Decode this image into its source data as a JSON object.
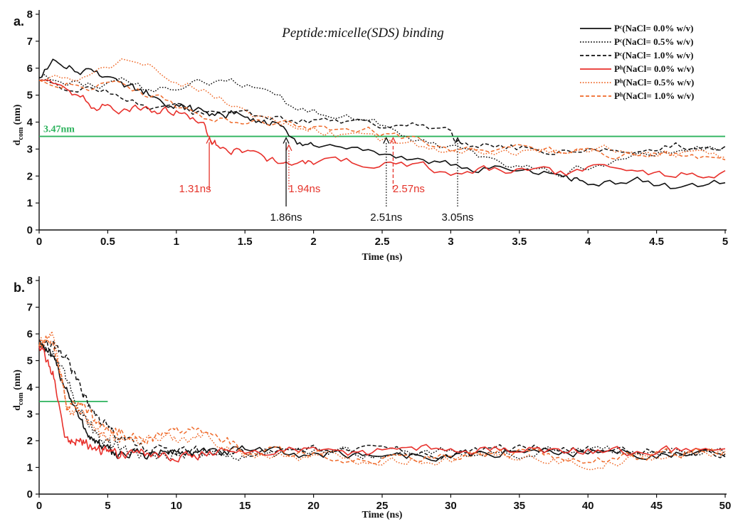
{
  "colors": {
    "pc": "#111111",
    "ph_red": "#e8312c",
    "ph_orange": "#ef6a2a",
    "threshold": "#2db35d",
    "anno_black": "#111111",
    "anno_red": "#e5332a"
  },
  "chart_data": [
    {
      "type": "line",
      "panel_label": "a.",
      "title": "Peptide:micelle(SDS) binding",
      "xlabel": "Time (ns)",
      "ylabel": "d",
      "ylabel_sub": "com",
      "ylabel_unit": "(nm)",
      "xlim": [
        0,
        5
      ],
      "ylim": [
        0,
        8
      ],
      "xticks": [
        0,
        0.5,
        1,
        1.5,
        2,
        2.5,
        3,
        3.5,
        4,
        4.5,
        5
      ],
      "xtick_labels": [
        "0",
        "0.5",
        "1",
        "1.5",
        "2",
        "2.5",
        "3",
        "3.5",
        "4",
        "4.5",
        "5"
      ],
      "yticks": [
        0,
        1,
        2,
        3,
        4,
        5,
        6,
        7,
        8
      ],
      "ytick_labels": [
        "0",
        "1",
        "2",
        "3",
        "4",
        "5",
        "6",
        "7",
        "8"
      ],
      "grid": false,
      "legend_position": "top-right",
      "threshold": {
        "y": 3.47,
        "label": "3.47nm"
      },
      "annotations": [
        {
          "x": 1.24,
          "label": "1.31ns",
          "color": "red",
          "style": "solid",
          "y_point": 3.47
        },
        {
          "x": 1.82,
          "label": "1.94ns",
          "color": "red",
          "style": "dotted",
          "y_point": 3.2
        },
        {
          "x": 2.58,
          "label": "2.57ns",
          "color": "red",
          "style": "dashed",
          "y_point": 3.47
        },
        {
          "x": 1.8,
          "label": "1.86ns",
          "color": "black",
          "style": "solid",
          "y_point": 3.47
        },
        {
          "x": 2.53,
          "label": "2.51ns",
          "color": "black",
          "style": "dotted",
          "y_point": 3.47
        },
        {
          "x": 3.05,
          "label": "3.05ns",
          "color": "black",
          "style": "dotted",
          "y_point": 3.47
        }
      ],
      "series": [
        {
          "name": "Pᶜ(NaCl= 0.0% w/v)",
          "color": "pc",
          "style": "solid",
          "x": [
            0,
            0.1,
            0.2,
            0.3,
            0.4,
            0.5,
            0.6,
            0.7,
            0.8,
            0.9,
            1.0,
            1.1,
            1.2,
            1.3,
            1.4,
            1.5,
            1.6,
            1.7,
            1.8,
            1.9,
            2.0,
            2.2,
            2.4,
            2.6,
            2.8,
            3.0,
            3.2,
            3.4,
            3.6,
            3.8,
            3.9,
            4.0,
            4.2,
            4.4,
            4.6,
            4.8,
            5.0
          ],
          "y": [
            5.7,
            6.2,
            6.1,
            5.9,
            5.9,
            5.7,
            5.3,
            5.2,
            5.1,
            4.9,
            4.6,
            4.5,
            4.3,
            4.3,
            4.3,
            4.2,
            4.1,
            4.0,
            3.6,
            3.2,
            3.1,
            2.9,
            2.8,
            2.7,
            2.6,
            2.5,
            2.3,
            2.2,
            2.1,
            2.0,
            1.8,
            1.8,
            1.7,
            1.8,
            1.6,
            1.6,
            1.75
          ]
        },
        {
          "name": "Pᶜ(NaCl= 0.5% w/v)",
          "color": "pc",
          "style": "dotted",
          "x": [
            0,
            0.2,
            0.4,
            0.6,
            0.8,
            1.0,
            1.2,
            1.4,
            1.6,
            1.8,
            2.0,
            2.2,
            2.4,
            2.6,
            2.8,
            3.0,
            3.2,
            3.4,
            3.6,
            3.8,
            4.0,
            4.2,
            4.4,
            4.6,
            4.8,
            5.0
          ],
          "y": [
            5.7,
            5.5,
            5.3,
            5.6,
            5.2,
            5.3,
            5.5,
            5.6,
            5.2,
            4.7,
            4.4,
            4.2,
            4.0,
            3.8,
            3.3,
            3.0,
            2.7,
            2.5,
            2.3,
            2.1,
            2.4,
            2.5,
            2.7,
            2.9,
            3.0,
            3.1
          ]
        },
        {
          "name": "Pᶜ(NaCl= 1.0% w/v)",
          "color": "pc",
          "style": "dashed",
          "x": [
            0,
            0.2,
            0.4,
            0.6,
            0.8,
            1.0,
            1.2,
            1.4,
            1.6,
            1.8,
            2.0,
            2.2,
            2.4,
            2.6,
            2.8,
            3.0,
            3.05,
            3.2,
            3.4,
            3.6,
            3.8,
            4.0,
            4.2,
            4.4,
            4.6,
            4.8,
            5.0
          ],
          "y": [
            5.6,
            5.3,
            5.2,
            5.0,
            4.6,
            4.5,
            4.3,
            4.4,
            4.3,
            4.1,
            4.0,
            3.9,
            3.9,
            3.9,
            3.8,
            3.6,
            3.3,
            3.2,
            3.1,
            3.0,
            3.0,
            2.9,
            3.0,
            3.1,
            3.2,
            3.1,
            3.1
          ]
        },
        {
          "name": "Pʰ(NaCl= 0.0% w/v)",
          "color": "ph_red",
          "style": "solid",
          "x": [
            0,
            0.1,
            0.2,
            0.3,
            0.4,
            0.5,
            0.6,
            0.7,
            0.8,
            0.9,
            1.0,
            1.1,
            1.2,
            1.25,
            1.3,
            1.4,
            1.5,
            1.6,
            1.7,
            1.8,
            1.9,
            2.0,
            2.2,
            2.4,
            2.6,
            2.8,
            3.0,
            3.2,
            3.4,
            3.6,
            3.8,
            4.0,
            4.2,
            4.4,
            4.6,
            4.8,
            5.0
          ],
          "y": [
            5.6,
            5.4,
            5.2,
            4.9,
            4.6,
            4.6,
            4.5,
            4.5,
            4.6,
            4.4,
            4.4,
            4.2,
            3.9,
            3.47,
            3.1,
            3.0,
            3.0,
            2.9,
            2.6,
            2.4,
            2.6,
            2.6,
            2.6,
            2.5,
            2.4,
            2.3,
            2.2,
            2.2,
            2.2,
            2.1,
            2.1,
            2.2,
            2.2,
            2.2,
            2.1,
            2.1,
            2.2
          ]
        },
        {
          "name": "Pʰ(NaCl= 0.5% w/v)",
          "color": "ph_orange",
          "style": "dotted",
          "x": [
            0,
            0.2,
            0.4,
            0.6,
            0.8,
            1.0,
            1.2,
            1.4,
            1.6,
            1.8,
            2.0,
            2.2,
            2.4,
            2.6,
            2.8,
            3.0,
            3.2,
            3.4,
            3.6,
            3.8,
            4.0,
            4.2,
            4.4,
            4.6,
            4.8,
            5.0
          ],
          "y": [
            5.6,
            5.6,
            5.9,
            6.2,
            6.0,
            5.6,
            5.2,
            4.6,
            4.2,
            3.9,
            3.8,
            3.5,
            3.4,
            3.2,
            3.1,
            3.0,
            3.0,
            3.0,
            2.9,
            2.9,
            3.0,
            3.0,
            2.8,
            2.9,
            2.8,
            2.7
          ]
        },
        {
          "name": "Pʰ(NaCl= 1.0% w/v)",
          "color": "ph_orange",
          "style": "dashed",
          "x": [
            0,
            0.2,
            0.4,
            0.6,
            0.8,
            1.0,
            1.2,
            1.4,
            1.6,
            1.8,
            2.0,
            2.2,
            2.4,
            2.6,
            2.8,
            3.0,
            3.2,
            3.4,
            3.6,
            3.8,
            4.0,
            4.2,
            4.4,
            4.6,
            4.8,
            5.0
          ],
          "y": [
            5.6,
            5.5,
            5.3,
            5.4,
            5.0,
            4.6,
            4.3,
            4.1,
            4.1,
            3.9,
            3.8,
            3.7,
            3.7,
            3.5,
            3.2,
            3.0,
            2.9,
            3.0,
            3.0,
            2.9,
            2.9,
            2.8,
            2.7,
            2.8,
            2.7,
            2.6
          ]
        }
      ]
    },
    {
      "type": "line",
      "panel_label": "b.",
      "xlabel": "Time (ns)",
      "ylabel": "d",
      "ylabel_sub": "com",
      "ylabel_unit": "(nm)",
      "xlim": [
        0,
        50
      ],
      "ylim": [
        0,
        8
      ],
      "xticks": [
        0,
        5,
        10,
        15,
        20,
        25,
        30,
        35,
        40,
        45,
        50
      ],
      "xtick_labels": [
        "0",
        "5",
        "10",
        "15",
        "20",
        "25",
        "30",
        "35",
        "40",
        "45",
        "50"
      ],
      "yticks": [
        0,
        1,
        2,
        3,
        4,
        5,
        6,
        7,
        8
      ],
      "ytick_labels": [
        "0",
        "1",
        "2",
        "3",
        "4",
        "5",
        "6",
        "7",
        "8"
      ],
      "grid": false,
      "threshold": {
        "y": 3.47,
        "x_end": 5
      },
      "series": [
        {
          "color": "pc",
          "style": "solid",
          "x": [
            0,
            1,
            2,
            3,
            4,
            5,
            6,
            8,
            10,
            12,
            15,
            20,
            25,
            30,
            35,
            40,
            45,
            50
          ],
          "y": [
            5.8,
            5.0,
            4.0,
            2.7,
            2.0,
            1.6,
            1.5,
            1.5,
            1.6,
            1.5,
            1.6,
            1.5,
            1.5,
            1.4,
            1.6,
            1.6,
            1.5,
            1.4
          ]
        },
        {
          "color": "pc",
          "style": "dotted",
          "x": [
            0,
            1,
            2,
            3,
            4,
            5,
            6,
            8,
            10,
            12,
            15,
            20,
            25,
            30,
            35,
            40,
            45,
            50
          ],
          "y": [
            5.7,
            5.3,
            4.2,
            3.2,
            2.4,
            1.9,
            1.7,
            1.4,
            1.5,
            1.5,
            1.4,
            1.6,
            1.5,
            1.6,
            1.5,
            1.6,
            1.6,
            1.5
          ]
        },
        {
          "color": "pc",
          "style": "dashed",
          "x": [
            0,
            1,
            2,
            3,
            4,
            5,
            6,
            8,
            10,
            12,
            15,
            20,
            25,
            30,
            35,
            40,
            45,
            50
          ],
          "y": [
            5.6,
            5.5,
            5.0,
            4.0,
            3.0,
            2.5,
            2.0,
            1.7,
            1.6,
            1.6,
            1.5,
            1.7,
            1.6,
            1.5,
            1.7,
            1.8,
            1.6,
            1.5
          ]
        },
        {
          "color": "ph_red",
          "style": "solid",
          "x": [
            0,
            1,
            2,
            3,
            4,
            5,
            6,
            8,
            10,
            12,
            15,
            20,
            25,
            30,
            35,
            40,
            45,
            50
          ],
          "y": [
            5.6,
            4.5,
            2.0,
            2.0,
            1.7,
            1.6,
            1.6,
            1.5,
            1.5,
            1.5,
            1.6,
            1.6,
            1.6,
            1.7,
            1.6,
            1.6,
            1.6,
            1.7
          ]
        },
        {
          "color": "ph_orange",
          "style": "dotted",
          "x": [
            0,
            1,
            2,
            3,
            4,
            5,
            6,
            8,
            10,
            12,
            15,
            20,
            25,
            30,
            35,
            40,
            45,
            50
          ],
          "y": [
            5.6,
            6.0,
            3.2,
            3.0,
            2.5,
            2.1,
            2.0,
            2.1,
            2.1,
            2.2,
            1.5,
            1.4,
            1.3,
            1.3,
            1.5,
            1.1,
            1.4,
            1.5
          ]
        },
        {
          "color": "ph_orange",
          "style": "dashed",
          "x": [
            0,
            1,
            2,
            3,
            4,
            5,
            6,
            8,
            10,
            12,
            15,
            20,
            25,
            30,
            35,
            40,
            45,
            50
          ],
          "y": [
            5.6,
            5.8,
            3.4,
            3.3,
            2.8,
            2.4,
            2.2,
            2.1,
            2.3,
            2.4,
            1.7,
            1.5,
            1.3,
            1.4,
            1.6,
            1.3,
            1.5,
            1.6
          ]
        }
      ]
    }
  ]
}
